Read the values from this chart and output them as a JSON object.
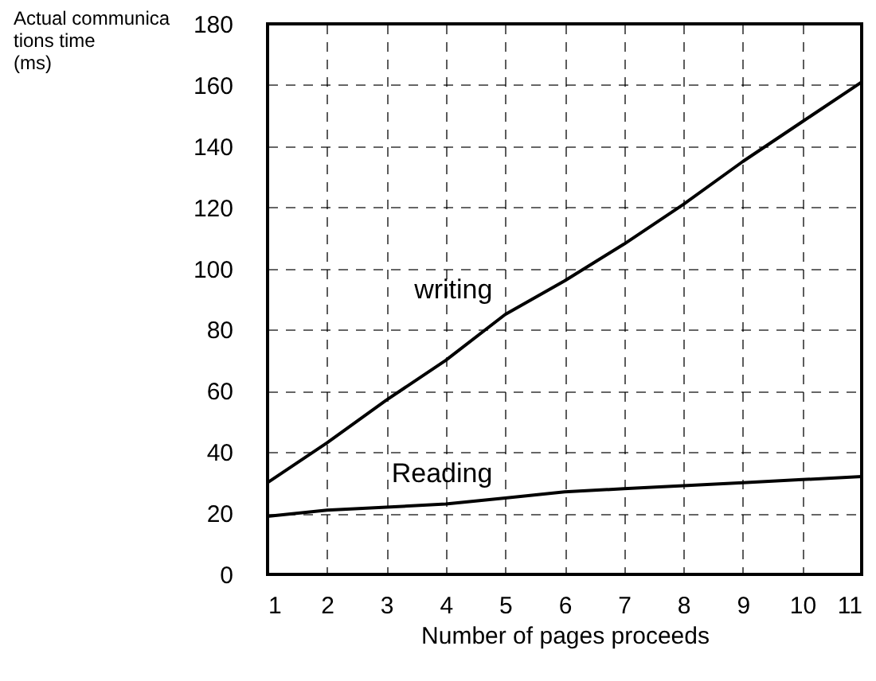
{
  "chart_data": {
    "type": "line",
    "xlabel": "Number of pages proceeds",
    "ylabel": "Actual communica\ntions time\n(ms)",
    "x": [
      1,
      2,
      3,
      4,
      5,
      6,
      7,
      8,
      9,
      10,
      11
    ],
    "series": [
      {
        "name": "writing",
        "color": "#000000",
        "values": [
          30,
          43,
          57,
          70,
          85,
          96,
          108,
          121,
          135,
          148,
          161
        ]
      },
      {
        "name": "Reading",
        "color": "#000000",
        "values": [
          19,
          21,
          22,
          23,
          25,
          27,
          28,
          29,
          30,
          31,
          32
        ]
      }
    ],
    "xlim": [
      1,
      11
    ],
    "xticks": [
      1,
      2,
      3,
      4,
      5,
      6,
      7,
      8,
      9,
      10,
      11
    ],
    "ylim": [
      0,
      180
    ],
    "yticks": [
      0,
      20,
      40,
      60,
      80,
      100,
      120,
      140,
      160,
      180
    ],
    "grid": true,
    "line_style": "solid"
  }
}
